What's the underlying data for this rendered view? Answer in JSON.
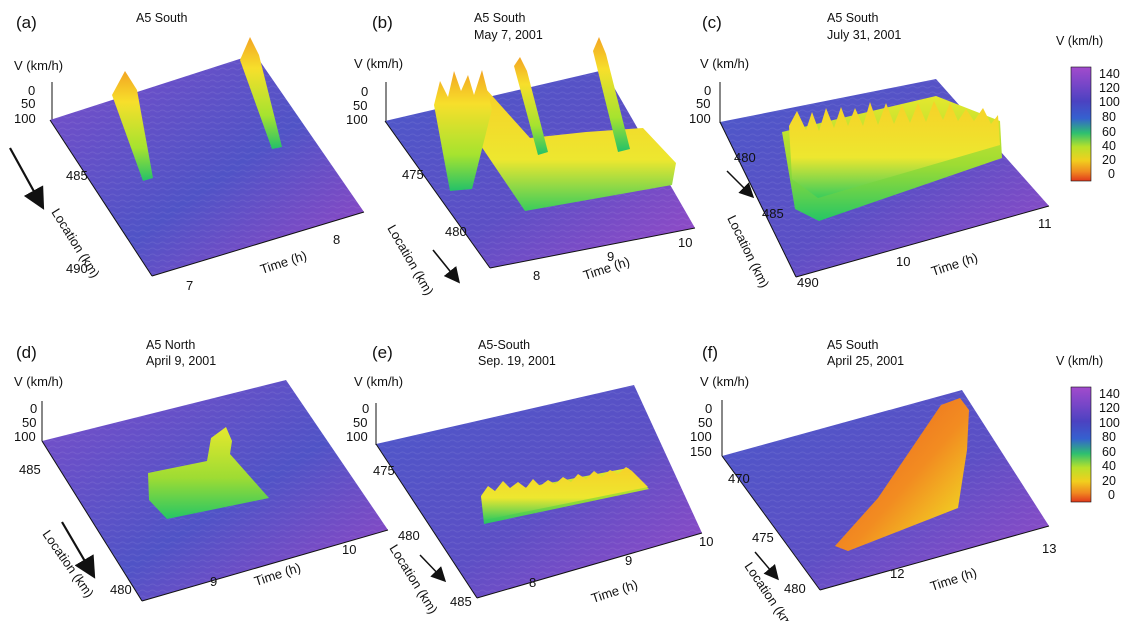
{
  "chart_data": [
    {
      "type": "surface",
      "panel": "(a)",
      "title_lines": [
        "A5 South"
      ],
      "zlabel": "V (km/h)",
      "zticks": [
        "0",
        "50",
        "100"
      ],
      "ylabel": "Location (km)",
      "yticks": [
        "485",
        "490"
      ],
      "xlabel": "Time (h)",
      "xticks": [
        "7",
        "8"
      ],
      "description_values": {
        "jams": [
          {
            "start_time_h": 7.1,
            "end_time_h": 7.3,
            "min_speed_kmh": 10
          },
          {
            "start_time_h": 7.9,
            "end_time_h": 8.1,
            "min_speed_kmh": 10
          }
        ]
      }
    },
    {
      "type": "surface",
      "panel": "(b)",
      "title_lines": [
        "A5 South",
        "May 7, 2001"
      ],
      "zlabel": "V (km/h)",
      "zticks": [
        "0",
        "50",
        "100"
      ],
      "ylabel": "Location (km)",
      "yticks": [
        "475",
        "480"
      ],
      "xlabel": "Time (h)",
      "xticks": [
        "8",
        "9",
        "10"
      ],
      "description_values": {
        "congested_speed_kmh": [
          20,
          50
        ]
      }
    },
    {
      "type": "surface",
      "panel": "(c)",
      "title_lines": [
        "A5 South",
        "July 31, 2001"
      ],
      "zlabel": "V (km/h)",
      "zticks": [
        "0",
        "50",
        "100"
      ],
      "ylabel": "Location (km)",
      "yticks": [
        "480",
        "485",
        "490"
      ],
      "xlabel": "Time (h)",
      "xticks": [
        "10",
        "11"
      ],
      "description_values": {
        "congested_speed_kmh": [
          40,
          60
        ]
      }
    },
    {
      "type": "surface",
      "panel": "(d)",
      "title_lines": [
        "A5 North",
        "April 9, 2001"
      ],
      "zlabel": "V (km/h)",
      "zticks": [
        "0",
        "50",
        "100"
      ],
      "ylabel": "Location (km)",
      "yticks": [
        "485",
        "480"
      ],
      "xlabel": "Time (h)",
      "xticks": [
        "9",
        "10"
      ],
      "description_values": {
        "congested_speed_kmh": [
          50,
          60
        ]
      }
    },
    {
      "type": "surface",
      "panel": "(e)",
      "title_lines": [
        "A5-South",
        "Sep. 19, 2001"
      ],
      "zlabel": "V (km/h)",
      "zticks": [
        "0",
        "50",
        "100"
      ],
      "ylabel": "Location (km)",
      "yticks": [
        "475",
        "480",
        "485"
      ],
      "xlabel": "Time (h)",
      "xticks": [
        "8",
        "9",
        "10"
      ],
      "description_values": {
        "congested_speed_kmh": [
          50,
          60
        ]
      }
    },
    {
      "type": "surface",
      "panel": "(f)",
      "title_lines": [
        "A5 South",
        "April 25, 2001"
      ],
      "zlabel": "V (km/h)",
      "zticks": [
        "0",
        "50",
        "100",
        "150"
      ],
      "ylabel": "Location (km)",
      "yticks": [
        "470",
        "475",
        "480"
      ],
      "xlabel": "Time (h)",
      "xticks": [
        "12",
        "13"
      ],
      "description_values": {
        "congested_speed_kmh": [
          10,
          30
        ]
      }
    }
  ],
  "colorbars": [
    {
      "label": "V (km/h)",
      "ticks": [
        "140",
        "120",
        "100",
        "80",
        "60",
        "40",
        "20",
        "0"
      ],
      "range": [
        0,
        140
      ],
      "colors": [
        "#9b3fc4",
        "#7a3fc8",
        "#4a3fc0",
        "#3a4fc8",
        "#2e8ad0",
        "#28c06a",
        "#b4e02a",
        "#f0d020",
        "#f08a20",
        "#e03a1e"
      ]
    },
    {
      "label": "V (km/h)",
      "ticks": [
        "140",
        "120",
        "100",
        "80",
        "60",
        "40",
        "20",
        "0"
      ],
      "range": [
        0,
        140
      ],
      "colors": [
        "#9b3fc4",
        "#7a3fc8",
        "#4a3fc0",
        "#3a4fc8",
        "#2e8ad0",
        "#28c06a",
        "#b4e02a",
        "#f0d020",
        "#f08a20",
        "#e03a1e"
      ]
    }
  ]
}
